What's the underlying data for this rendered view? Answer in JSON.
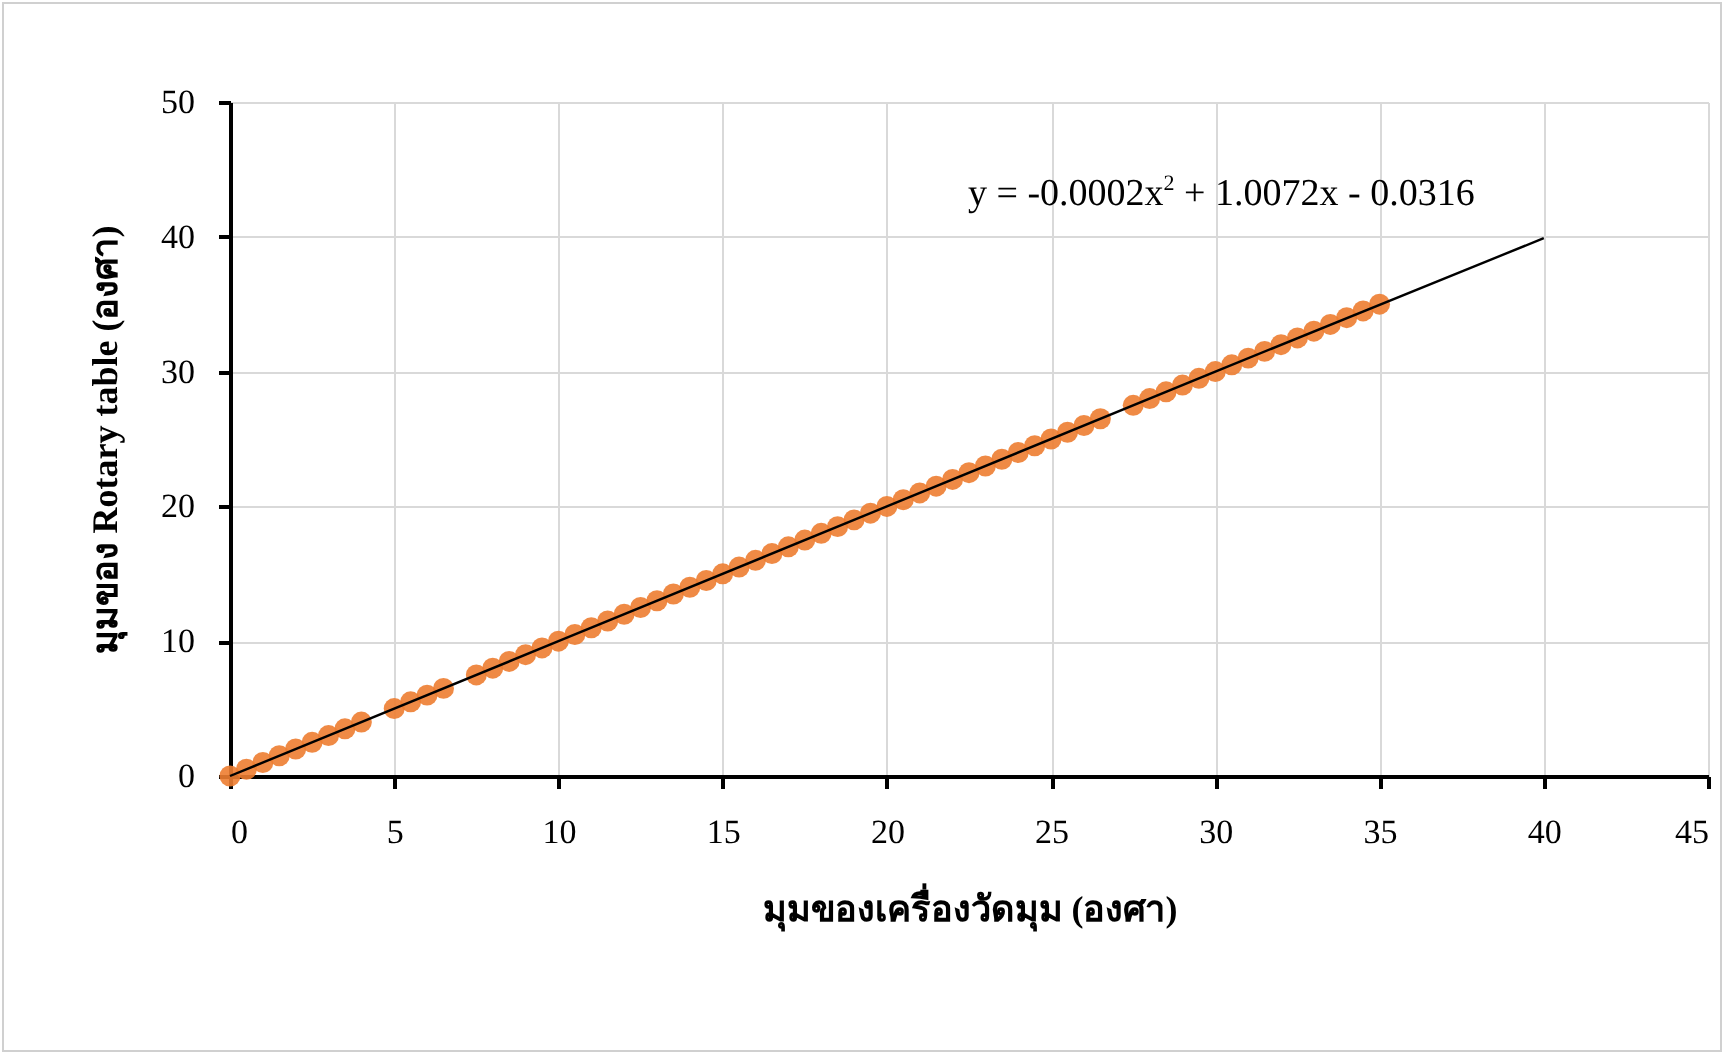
{
  "chart_data": {
    "type": "scatter",
    "xlabel": "มุมของเครื่องวัดมุม (องศา)",
    "ylabel": "มุมของ Rotary table (องศา)",
    "annotations": [
      "y = -0.0002x$^{2}$ + 1.0072x - 0.0316"
    ],
    "xlim": [
      0,
      45
    ],
    "xticks": [
      0,
      5,
      10,
      15,
      20,
      25,
      30,
      35,
      40,
      45
    ],
    "ylim": [
      0,
      50
    ],
    "yticks": [
      0,
      10,
      20,
      30,
      40,
      50
    ],
    "grid": true,
    "series": [
      {
        "marker": "circle",
        "color": "#ed7d31",
        "x": [
          0,
          0.5,
          1,
          1.5,
          2,
          2.5,
          3,
          3.5,
          4,
          5,
          5.5,
          6,
          6.5,
          7.5,
          8,
          8.5,
          9,
          9.5,
          10,
          10.5,
          11,
          11.5,
          12,
          12.5,
          13,
          13.5,
          14,
          14.5,
          15,
          15.5,
          16,
          16.5,
          17,
          17.5,
          18,
          18.5,
          19,
          19.5,
          20,
          20.5,
          21,
          21.5,
          22,
          22.5,
          23,
          23.5,
          24,
          24.5,
          25,
          25.5,
          26,
          26.5,
          27.5,
          28,
          28.5,
          29,
          29.5,
          30,
          30.5,
          31,
          31.5,
          32,
          32.5,
          33,
          33.5,
          34,
          34.5,
          35
        ],
        "values": [
          0,
          0.5,
          1,
          1.5,
          2,
          2.5,
          3,
          3.5,
          4,
          5,
          5.5,
          6,
          6.5,
          7.5,
          8,
          8.5,
          9,
          9.5,
          10,
          10.5,
          11,
          11.5,
          12,
          12.5,
          13,
          13.5,
          14,
          14.5,
          15,
          15.5,
          16,
          16.5,
          17,
          17.5,
          18,
          18.5,
          19,
          19.5,
          20,
          20.5,
          21,
          21.5,
          22,
          22.5,
          23,
          23.5,
          24,
          24.5,
          25,
          25.5,
          26,
          26.5,
          27.5,
          28,
          28.5,
          29,
          29.5,
          30,
          30.5,
          31,
          31.5,
          32,
          32.5,
          33,
          33.5,
          34,
          34.5,
          35
        ]
      },
      {
        "type": "line",
        "marker": "none",
        "color": "#000000",
        "line_style": "solid",
        "x": [
          0,
          10,
          20,
          30,
          40
        ],
        "values": [
          0,
          10,
          20,
          30,
          39.9
        ]
      }
    ]
  }
}
